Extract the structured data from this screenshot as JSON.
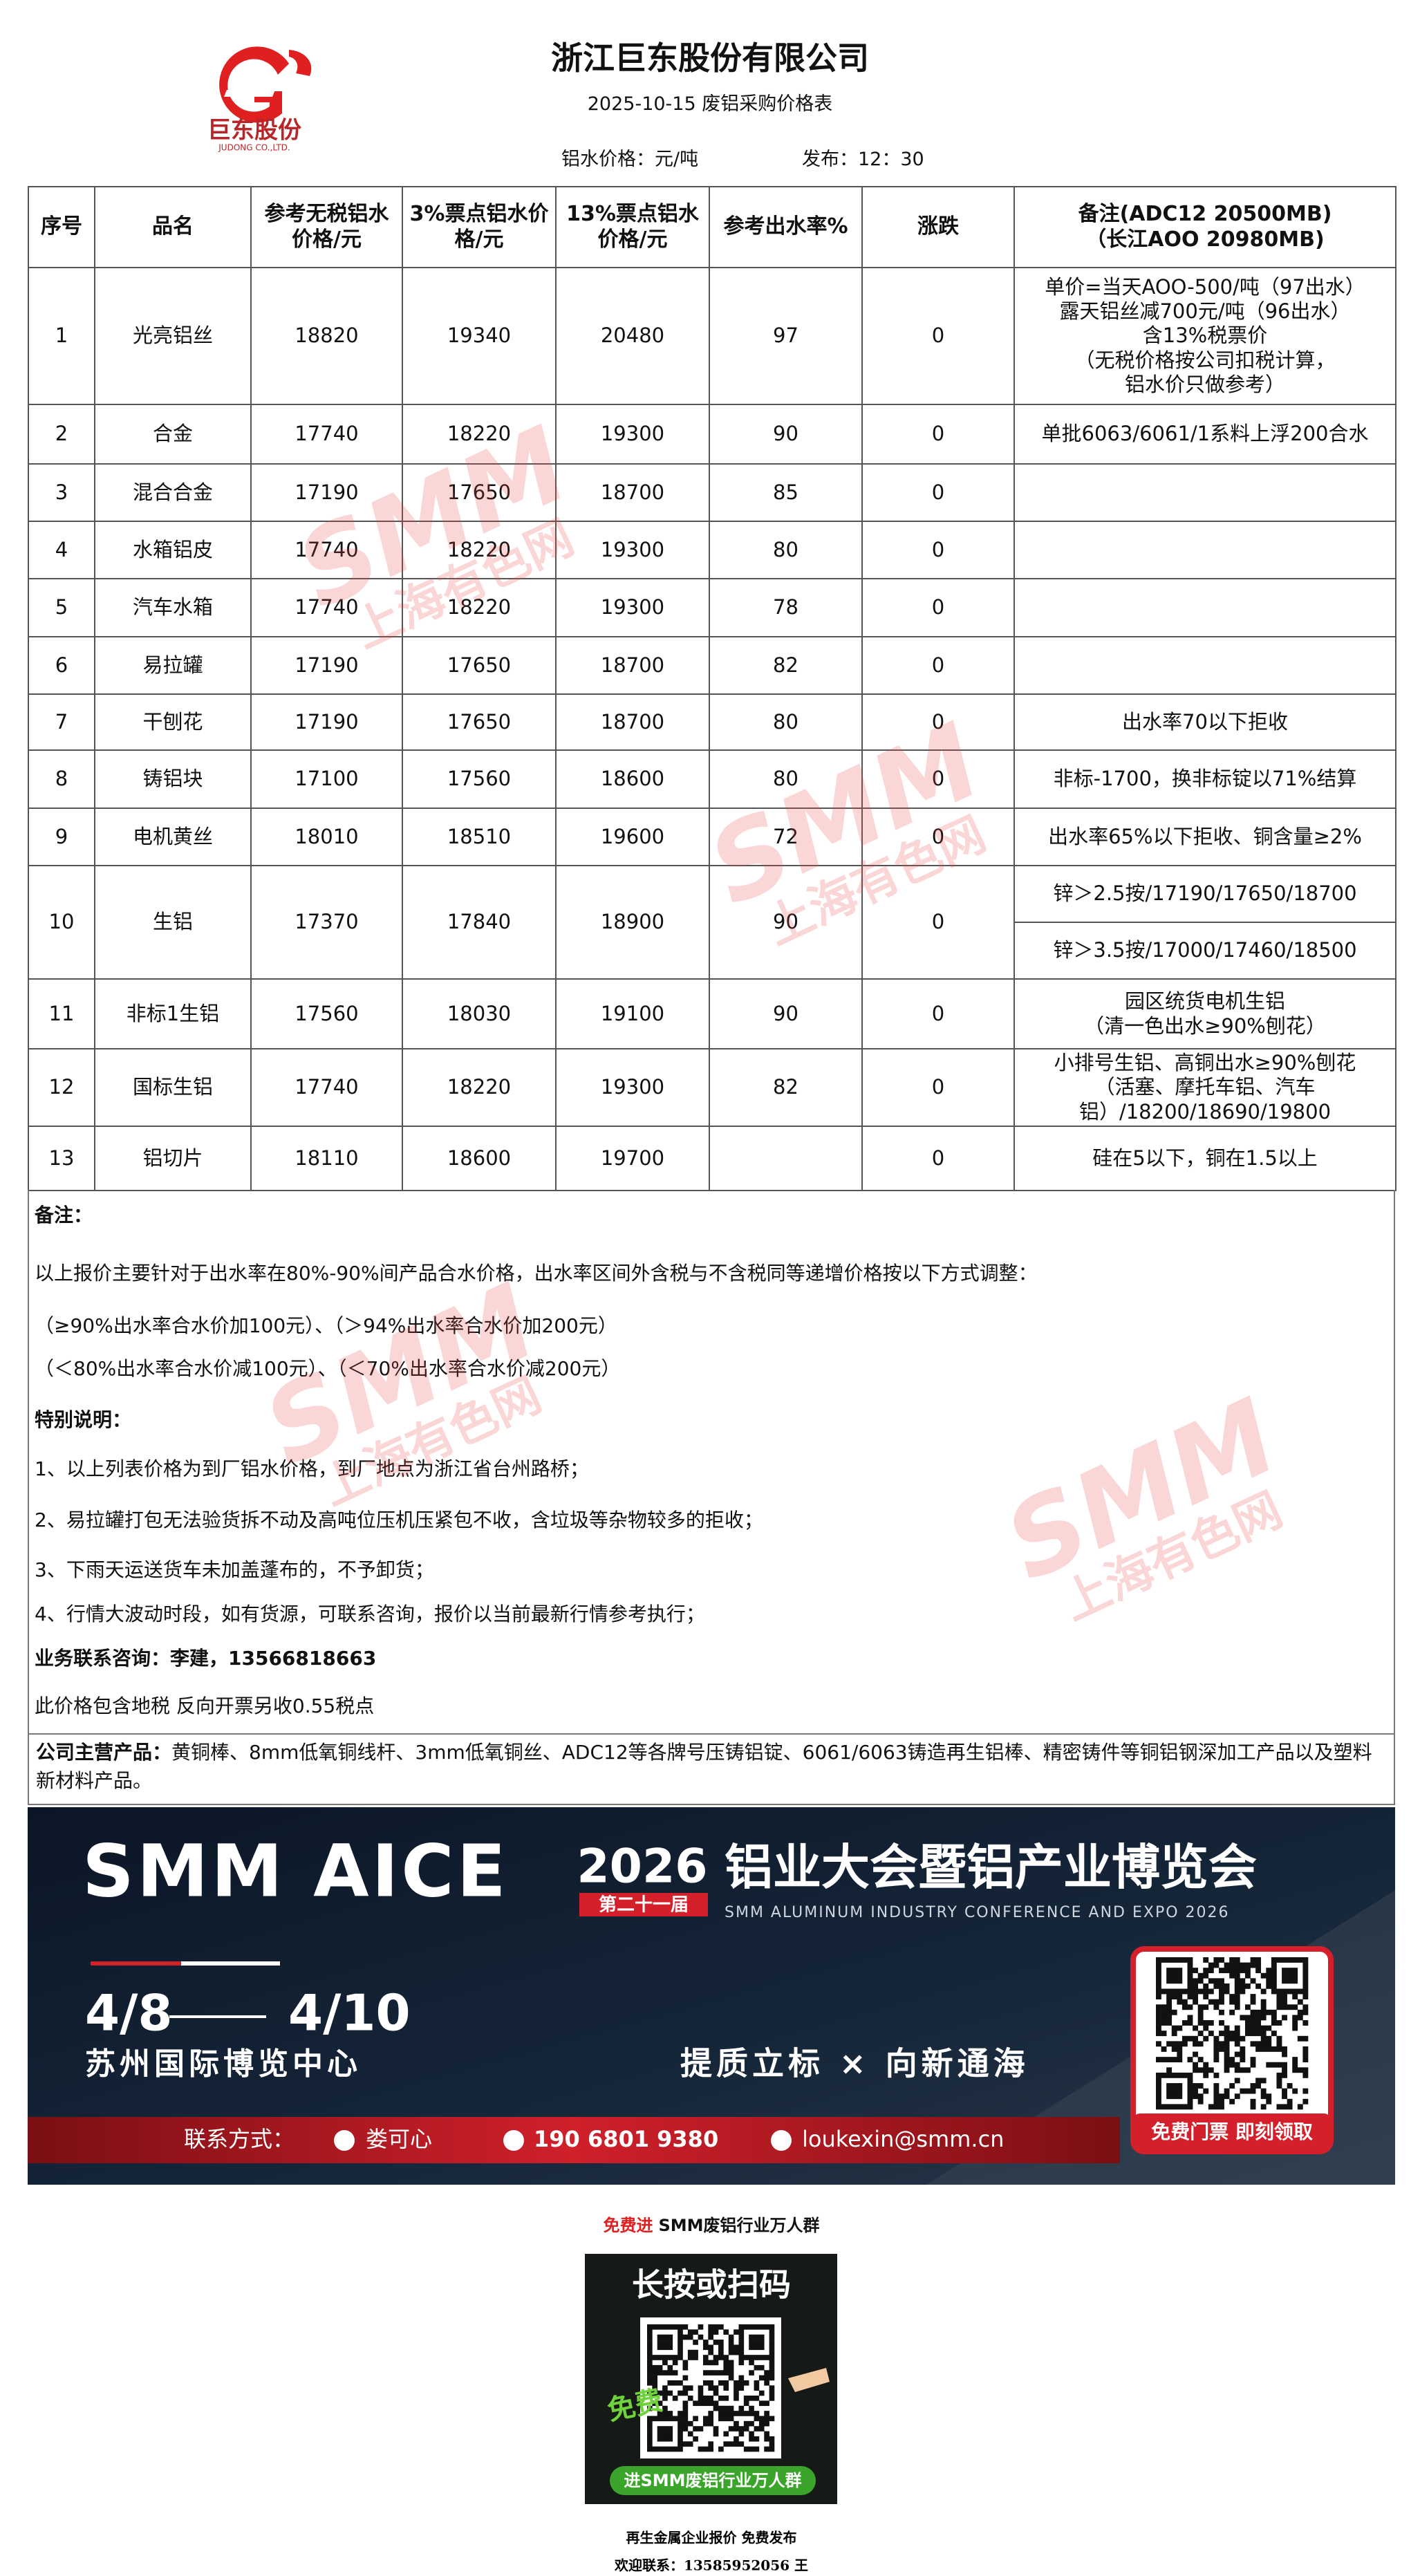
{
  "header": {
    "company": "浙江巨东股份有限公司",
    "subtitle": "2025-10-15 废铝采购价格表",
    "price_unit": "铝水价格：元/吨",
    "publish_time": "发布：12：30",
    "logo_name": "巨东股份",
    "logo_en": "JUDONG CO.,LTD."
  },
  "table": {
    "columns": [
      "序号",
      "品名",
      "参考无税铝水价格/元",
      "3%票点铝水价格/元",
      "13%票点铝水价格/元",
      "参考出水率%",
      "涨跌"
    ],
    "remark_header": [
      "备注(ADC12 20500MB)",
      "（长江AOO  20980MB)"
    ],
    "rows": [
      {
        "no": 1,
        "name": "光亮铝丝",
        "untaxed": 18820,
        "tax3": 19340,
        "tax13": 20480,
        "yield": 97,
        "change": 0,
        "remark": [
          "单价=当天AOO-500/吨（97出水）",
          "露天铝丝减700元/吨（96出水）",
          "含13%税票价",
          "（无税价格按公司扣税计算，",
          "铝水价只做参考）"
        ]
      },
      {
        "no": 2,
        "name": "合金",
        "untaxed": 17740,
        "tax3": 18220,
        "tax13": 19300,
        "yield": 90,
        "change": 0,
        "remark": [
          "单批6063/6061/1系料上浮200合水"
        ]
      },
      {
        "no": 3,
        "name": "混合合金",
        "untaxed": 17190,
        "tax3": 17650,
        "tax13": 18700,
        "yield": 85,
        "change": 0,
        "remark": []
      },
      {
        "no": 4,
        "name": "水箱铝皮",
        "untaxed": 17740,
        "tax3": 18220,
        "tax13": 19300,
        "yield": 80,
        "change": 0,
        "remark": []
      },
      {
        "no": 5,
        "name": "汽车水箱",
        "untaxed": 17740,
        "tax3": 18220,
        "tax13": 19300,
        "yield": 78,
        "change": 0,
        "remark": []
      },
      {
        "no": 6,
        "name": "易拉罐",
        "untaxed": 17190,
        "tax3": 17650,
        "tax13": 18700,
        "yield": 82,
        "change": 0,
        "remark": []
      },
      {
        "no": 7,
        "name": "干刨花",
        "untaxed": 17190,
        "tax3": 17650,
        "tax13": 18700,
        "yield": 80,
        "change": 0,
        "remark": [
          "出水率70以下拒收"
        ]
      },
      {
        "no": 8,
        "name": "铸铝块",
        "untaxed": 17100,
        "tax3": 17560,
        "tax13": 18600,
        "yield": 80,
        "change": 0,
        "remark": [
          "非标-1700，换非标锭以71%结算"
        ]
      },
      {
        "no": 9,
        "name": "电机黄丝",
        "untaxed": 18010,
        "tax3": 18510,
        "tax13": 19600,
        "yield": 72,
        "change": 0,
        "remark": [
          "出水率65%以下拒收、铜含量≥2%"
        ]
      },
      {
        "no": 10,
        "name": "生铝",
        "untaxed": 17370,
        "tax3": 17840,
        "tax13": 18900,
        "yield": 90,
        "change": 0,
        "remark_split": [
          "锌＞2.5按/17190/17650/18700",
          "锌＞3.5按/17000/17460/18500"
        ]
      },
      {
        "no": 11,
        "name": "非标1生铝",
        "untaxed": 17560,
        "tax3": 18030,
        "tax13": 19100,
        "yield": 90,
        "change": 0,
        "remark": [
          "园区统货电机生铝",
          "（清一色出水≥90%刨花）"
        ]
      },
      {
        "no": 12,
        "name": "国标生铝",
        "untaxed": 17740,
        "tax3": 18220,
        "tax13": 19300,
        "yield": 82,
        "change": 0,
        "remark": [
          "小排号生铝、高铜出水≥90%刨花",
          "（活塞、摩托车铝、汽车",
          "铝）/18200/18690/19800"
        ]
      },
      {
        "no": 13,
        "name": "铝切片",
        "untaxed": 18110,
        "tax3": 18600,
        "tax13": 19700,
        "yield": null,
        "change": 0,
        "remark": [
          "硅在5以下，铜在1.5以上"
        ]
      }
    ]
  },
  "notes": {
    "title": "备注：",
    "intro": "以上报价主要针对于出水率在80%-90%间产品合水价格，出水率区间外含税与不含税同等递增价格按以下方式调整：",
    "adjust": [
      "（≥90%出水率合水价加100元）、（＞94%出水率合水价加200元）",
      "（＜80%出水率合水价减100元）、（＜70%出水率合水价减200元）"
    ],
    "special_title": "特别说明：",
    "special": [
      "1、以上列表价格为到厂铝水价格，到厂地点为浙江省台州路桥；",
      "2、易拉罐打包无法验货拆不动及高吨位压机压紧包不收，含垃圾等杂物较多的拒收；",
      "3、下雨天运送货车未加盖蓬布的，不予卸货；",
      "4、行情大波动时段，如有货源，可联系咨询，报价以当前最新行情参考执行；"
    ],
    "contact": "业务联系咨询：李建，13566818663",
    "tax": "此价格包含地税 反向开票另收0.55税点"
  },
  "products": {
    "label": "公司主营产品：",
    "text": "黄铜棒、8mm低氧铜线杆、3mm低氧铜丝、ADC12等各牌号压铸铝锭、6061/6063铸造再生铝棒、精密铸件等铜铝钢深加工产品以及塑料新材料产品。"
  },
  "banner": {
    "brand": "SMM AICE",
    "year": "2026",
    "edition": "第二十一届",
    "title": "铝业大会暨铝产业博览会",
    "english": "SMM ALUMINUM INDUSTRY CONFERENCE AND EXPO 2026",
    "date_start": "4/8",
    "date_end": "4/10",
    "venue": "苏州国际博览中心",
    "slogan": "提质立标 × 向新通海",
    "contact_label": "联系方式：",
    "contact_name": "娄可心",
    "contact_phone": "190 6801 9380",
    "contact_email": "loukexin@smm.cn",
    "ticket": "免费门票 即刻领取"
  },
  "footer": {
    "invite_free": "免费进",
    "invite_group": "SMM废铝行业万人群",
    "poster_title": "长按或扫码",
    "poster_free": "免费",
    "poster_button": "进SMM废铝行业万人群",
    "publish": "再生金属企业报价  免费发布",
    "contact": "欢迎联系：13585952056  王"
  },
  "watermark": {
    "brand": "SMM",
    "name": "上海有色网"
  }
}
